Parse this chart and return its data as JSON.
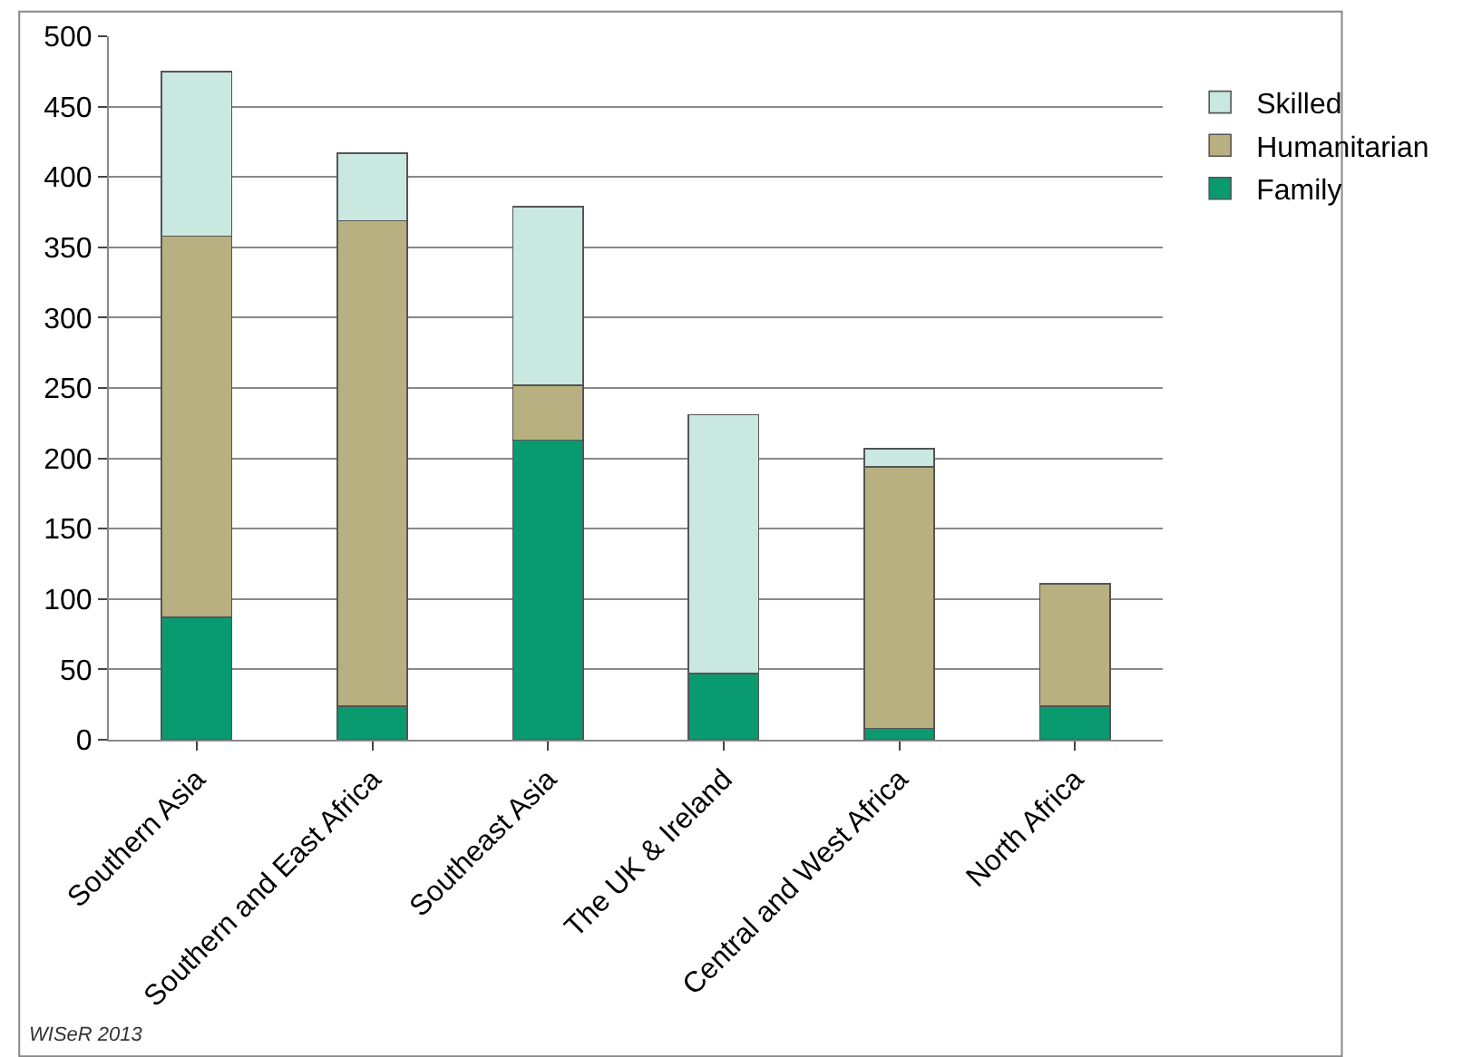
{
  "chart_data": {
    "type": "bar",
    "stacked": true,
    "categories": [
      "Southern Asia",
      "Southern and East Africa",
      "Southeast Asia",
      "The UK & Ireland",
      "Central and West Africa",
      "North Africa"
    ],
    "series": [
      {
        "name": "Family",
        "color": "#0a9a70",
        "values": [
          87,
          24,
          213,
          47,
          8,
          24
        ]
      },
      {
        "name": "Humanitarian",
        "color": "#b8b080",
        "values": [
          271,
          345,
          39,
          null,
          186,
          87
        ]
      },
      {
        "name": "Skilled",
        "color": "#c8e8e0",
        "values": [
          117,
          48,
          127,
          184,
          13,
          null
        ]
      }
    ],
    "ylim": [
      0,
      500
    ],
    "yticks": [
      0,
      50,
      100,
      150,
      200,
      250,
      300,
      350,
      400,
      450,
      500
    ],
    "grid": "y",
    "legend": "top right",
    "annotations": [
      "WISeR 2013"
    ]
  }
}
